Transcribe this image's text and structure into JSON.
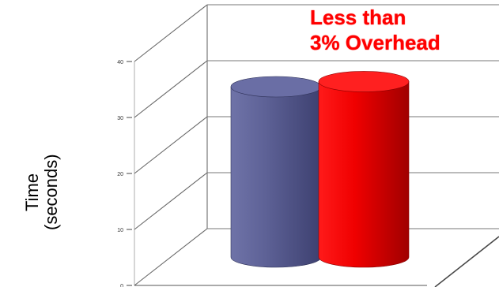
{
  "chart_data": {
    "type": "bar",
    "style": "3d-cylinder",
    "categories": [
      "",
      ""
    ],
    "values": [
      33,
      34
    ],
    "ylim": [
      0,
      40
    ],
    "yticks": [
      "0",
      "10",
      "20",
      "30",
      "40"
    ],
    "ylabel_lines": [
      "Time",
      "(seconds)"
    ],
    "annotation_lines": [
      "Less than",
      "3% Overhead"
    ],
    "grid": true,
    "colors": [
      "#5a5e95",
      "#e00000"
    ]
  }
}
